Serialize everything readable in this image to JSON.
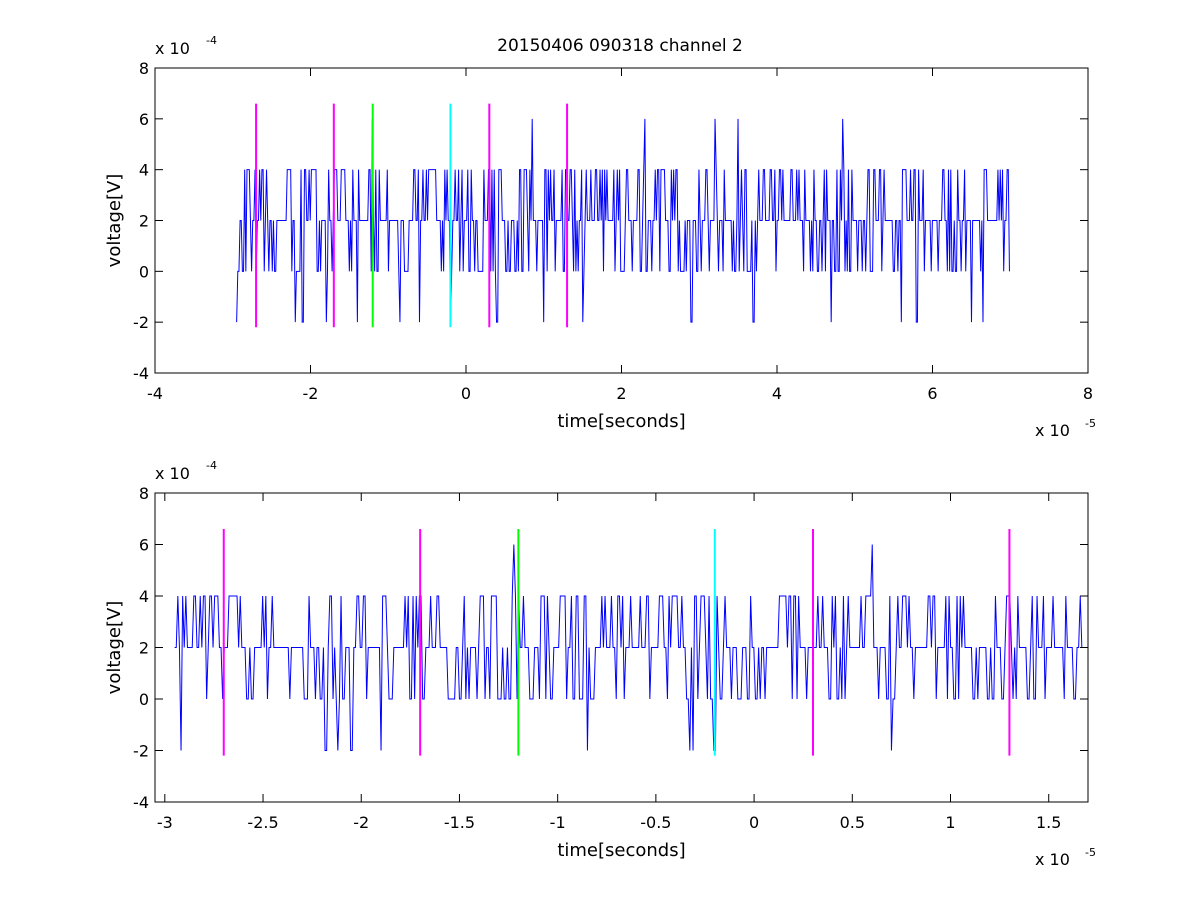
{
  "figure": {
    "title": "20150406 090318 channel 2"
  },
  "chart_data": [
    {
      "type": "line",
      "title": "20150406 090318 channel 2",
      "xlabel": "time[seconds]",
      "ylabel": "voltage[V]",
      "x_multiplier": "x 10",
      "x_exponent": "-5",
      "y_multiplier": "x 10",
      "y_exponent": "-4",
      "xlim": [
        -4,
        8
      ],
      "ylim": [
        -4,
        8
      ],
      "xticks": [
        -4,
        -2,
        0,
        2,
        4,
        6,
        8
      ],
      "yticks": [
        -4,
        -2,
        0,
        2,
        4,
        6,
        8
      ],
      "grid": false,
      "signal": {
        "color": "#0000ff",
        "x_start": -2.95,
        "x_end": 7.0,
        "seed": 12345,
        "baseline_levels": [
          0,
          2,
          4
        ],
        "spikes": [
          {
            "x": -1.2,
            "y": 6
          },
          {
            "x": 0.85,
            "y": 6
          },
          {
            "x": 2.3,
            "y": 6
          },
          {
            "x": 3.2,
            "y": 6
          },
          {
            "x": 3.5,
            "y": 6
          },
          {
            "x": 4.85,
            "y": 6
          }
        ],
        "dips": [
          -2.95,
          -2.2,
          -2.1,
          -1.8,
          -1.4,
          -0.85,
          -0.6,
          -0.2,
          0.4,
          1.0,
          1.5,
          2.9,
          3.7,
          4.7,
          5.6,
          5.8,
          6.5,
          6.65
        ]
      },
      "markers": [
        {
          "x": -2.7,
          "color": "#ff00ff",
          "ymin": -2.2,
          "ymax": 6.6
        },
        {
          "x": -1.7,
          "color": "#ff00ff",
          "ymin": -2.2,
          "ymax": 6.6
        },
        {
          "x": -1.2,
          "color": "#00ff00",
          "ymin": -2.2,
          "ymax": 6.6
        },
        {
          "x": -0.2,
          "color": "#00ffff",
          "ymin": -2.2,
          "ymax": 6.6
        },
        {
          "x": 0.3,
          "color": "#ff00ff",
          "ymin": -2.2,
          "ymax": 6.6
        },
        {
          "x": 1.3,
          "color": "#ff00ff",
          "ymin": -2.2,
          "ymax": 6.6
        }
      ]
    },
    {
      "type": "line",
      "title": "",
      "xlabel": "time[seconds]",
      "ylabel": "voltage[V]",
      "x_multiplier": "x 10",
      "x_exponent": "-5",
      "y_multiplier": "x 10",
      "y_exponent": "-4",
      "xlim": [
        -3.05,
        1.7
      ],
      "ylim": [
        -4,
        8
      ],
      "xticks": [
        -3,
        -2.5,
        -2,
        -1.5,
        -1,
        -0.5,
        0,
        0.5,
        1,
        1.5
      ],
      "yticks": [
        -4,
        -2,
        0,
        2,
        4,
        6,
        8
      ],
      "grid": false,
      "signal": {
        "color": "#0000ff",
        "x_start": -2.95,
        "x_end": 1.7,
        "seed": 777,
        "baseline_levels": [
          0,
          2,
          4
        ],
        "spikes": [
          {
            "x": -1.22,
            "y": 6
          },
          {
            "x": 0.6,
            "y": 6
          }
        ],
        "dips": [
          -2.92,
          -2.18,
          -2.12,
          -2.05,
          -1.9,
          -0.85,
          -0.33,
          -0.31,
          -0.2,
          0.7
        ]
      },
      "markers": [
        {
          "x": -2.7,
          "color": "#ff00ff",
          "ymin": -2.2,
          "ymax": 6.6
        },
        {
          "x": -1.7,
          "color": "#ff00ff",
          "ymin": -2.2,
          "ymax": 6.6
        },
        {
          "x": -1.2,
          "color": "#00ff00",
          "ymin": -2.2,
          "ymax": 6.6
        },
        {
          "x": -0.2,
          "color": "#00ffff",
          "ymin": -2.2,
          "ymax": 6.6
        },
        {
          "x": 0.3,
          "color": "#ff00ff",
          "ymin": -2.2,
          "ymax": 6.6
        },
        {
          "x": 1.3,
          "color": "#ff00ff",
          "ymin": -2.2,
          "ymax": 6.6
        }
      ]
    }
  ]
}
